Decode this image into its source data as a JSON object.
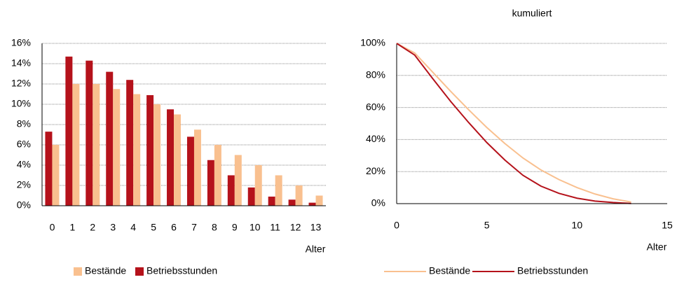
{
  "chart_data": [
    {
      "type": "bar",
      "categories": [
        "0",
        "1",
        "2",
        "3",
        "4",
        "5",
        "6",
        "7",
        "8",
        "9",
        "10",
        "11",
        "12",
        "13"
      ],
      "series": [
        {
          "name": "Bestände",
          "color": "#f9c08f",
          "values": [
            6.0,
            12.0,
            12.0,
            11.5,
            11.0,
            10.0,
            9.0,
            7.5,
            6.0,
            5.0,
            4.0,
            3.0,
            2.0,
            1.0
          ]
        },
        {
          "name": "Betriebsstunden",
          "color": "#b5121b",
          "values": [
            7.3,
            14.7,
            14.3,
            13.2,
            12.4,
            10.9,
            9.5,
            6.8,
            4.5,
            3.0,
            1.8,
            0.9,
            0.6,
            0.3
          ]
        }
      ],
      "xlabel": "Alter",
      "ylim": [
        0,
        16
      ],
      "yticks": [
        {
          "value": 0,
          "label": "0%"
        },
        {
          "value": 2,
          "label": "2%"
        },
        {
          "value": 4,
          "label": "4%"
        },
        {
          "value": 6,
          "label": "6%"
        },
        {
          "value": 8,
          "label": "8%"
        },
        {
          "value": 10,
          "label": "10%"
        },
        {
          "value": 12,
          "label": "12%"
        },
        {
          "value": 14,
          "label": "14%"
        },
        {
          "value": 16,
          "label": "16%"
        }
      ],
      "grid": true,
      "legend": "bottom"
    },
    {
      "type": "line",
      "title": "kumuliert",
      "x": [
        0,
        1,
        2,
        3,
        4,
        5,
        6,
        7,
        8,
        9,
        10,
        11,
        12,
        13
      ],
      "series": [
        {
          "name": "Bestände",
          "color": "#f9c08f",
          "values": [
            100,
            94,
            82,
            70,
            58.5,
            47.5,
            37.5,
            28.5,
            21,
            15,
            10,
            6,
            3,
            1
          ]
        },
        {
          "name": "Betriebsstunden",
          "color": "#b5121b",
          "values": [
            100,
            92.7,
            78,
            63.7,
            50.5,
            38.1,
            27.2,
            17.7,
            10.9,
            6.4,
            3.4,
            1.6,
            0.7,
            0.1
          ]
        }
      ],
      "xlabel": "Alter",
      "xlim": [
        0,
        15
      ],
      "xticks": [
        0,
        5,
        10,
        15
      ],
      "ylim": [
        0,
        100
      ],
      "yticks": [
        {
          "value": 0,
          "label": "0%"
        },
        {
          "value": 20,
          "label": "20%"
        },
        {
          "value": 40,
          "label": "40%"
        },
        {
          "value": 60,
          "label": "60%"
        },
        {
          "value": 80,
          "label": "80%"
        },
        {
          "value": 100,
          "label": "100%"
        }
      ],
      "grid": true,
      "legend": "bottom"
    }
  ]
}
